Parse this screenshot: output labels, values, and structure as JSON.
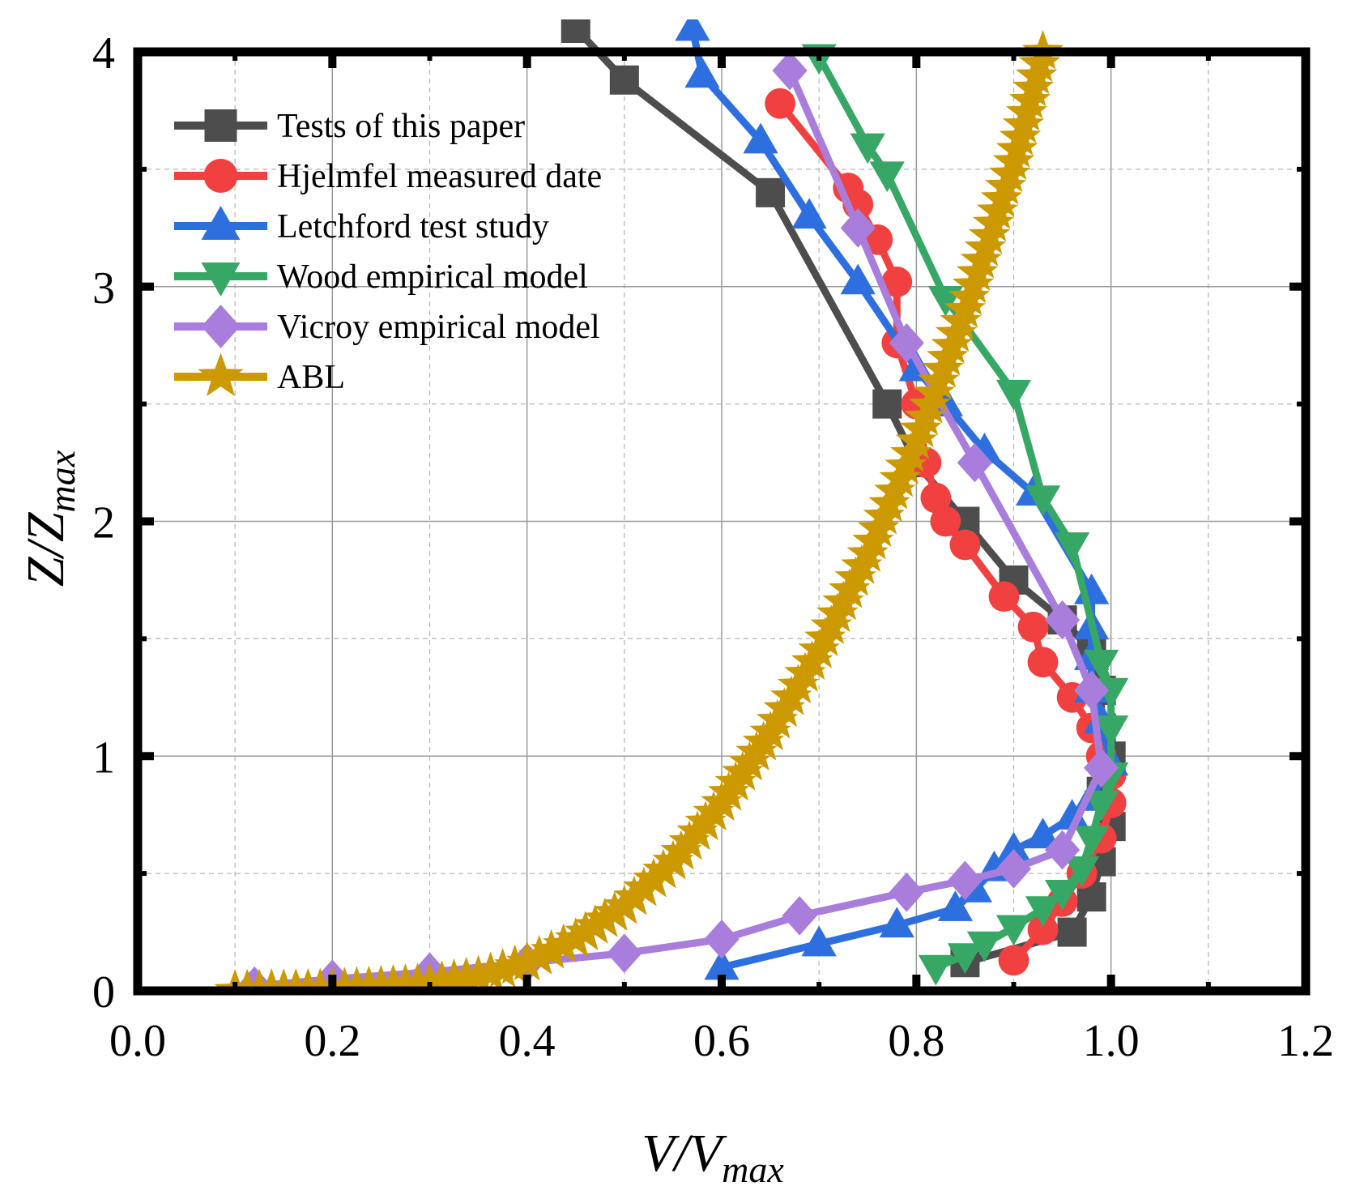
{
  "chart_data": {
    "type": "line",
    "title": "",
    "xlabel_main": "V/V",
    "xlabel_sub": "max",
    "ylabel_main": "Z/Z",
    "ylabel_sub": "max",
    "xlim": [
      0.0,
      1.2
    ],
    "ylim": [
      0,
      4
    ],
    "x_ticks": [
      0.0,
      0.2,
      0.4,
      0.6,
      0.8,
      1.0,
      1.2
    ],
    "x_tick_labels": [
      "0.0",
      "0.2",
      "0.4",
      "0.6",
      "0.8",
      "1.0",
      "1.2"
    ],
    "y_ticks": [
      0,
      1,
      2,
      3,
      4
    ],
    "y_tick_labels": [
      "0",
      "1",
      "2",
      "3",
      "4"
    ],
    "grid": true,
    "legend_position": "top-left",
    "series": [
      {
        "name": "Tests of this paper",
        "color": "#4d4d4d",
        "marker": "square",
        "points": [
          [
            0.85,
            0.12
          ],
          [
            0.96,
            0.25
          ],
          [
            0.98,
            0.4
          ],
          [
            0.99,
            0.55
          ],
          [
            1.0,
            0.7
          ],
          [
            0.99,
            0.85
          ],
          [
            1.0,
            1.0
          ],
          [
            0.99,
            1.12
          ],
          [
            0.99,
            1.28
          ],
          [
            0.98,
            1.45
          ],
          [
            0.95,
            1.58
          ],
          [
            0.9,
            1.75
          ],
          [
            0.85,
            2.0
          ],
          [
            0.8,
            2.25
          ],
          [
            0.77,
            2.5
          ],
          [
            0.65,
            3.4
          ],
          [
            0.5,
            3.88
          ],
          [
            0.45,
            4.1
          ]
        ]
      },
      {
        "name": "Hjelmfel measured date",
        "color": "#f04040",
        "marker": "circle",
        "points": [
          [
            0.9,
            0.13
          ],
          [
            0.93,
            0.26
          ],
          [
            0.95,
            0.38
          ],
          [
            0.97,
            0.5
          ],
          [
            0.99,
            0.65
          ],
          [
            1.0,
            0.8
          ],
          [
            1.0,
            0.92
          ],
          [
            0.99,
            1.0
          ],
          [
            0.98,
            1.12
          ],
          [
            0.96,
            1.25
          ],
          [
            0.93,
            1.4
          ],
          [
            0.92,
            1.55
          ],
          [
            0.89,
            1.68
          ],
          [
            0.85,
            1.9
          ],
          [
            0.83,
            2.0
          ],
          [
            0.82,
            2.1
          ],
          [
            0.81,
            2.25
          ],
          [
            0.8,
            2.5
          ],
          [
            0.78,
            2.76
          ],
          [
            0.78,
            3.02
          ],
          [
            0.76,
            3.2
          ],
          [
            0.74,
            3.35
          ],
          [
            0.73,
            3.42
          ],
          [
            0.66,
            3.78
          ]
        ]
      },
      {
        "name": "Letchford test study",
        "color": "#2e6fe0",
        "marker": "triangle-up",
        "points": [
          [
            0.6,
            0.1
          ],
          [
            0.7,
            0.2
          ],
          [
            0.78,
            0.28
          ],
          [
            0.84,
            0.35
          ],
          [
            0.86,
            0.43
          ],
          [
            0.88,
            0.52
          ],
          [
            0.9,
            0.6
          ],
          [
            0.93,
            0.66
          ],
          [
            0.96,
            0.74
          ],
          [
            0.98,
            0.82
          ],
          [
            1.0,
            0.97
          ],
          [
            0.99,
            1.15
          ],
          [
            0.98,
            1.28
          ],
          [
            0.98,
            1.42
          ],
          [
            0.98,
            1.55
          ],
          [
            0.98,
            1.7
          ],
          [
            0.92,
            2.12
          ],
          [
            0.87,
            2.3
          ],
          [
            0.83,
            2.5
          ],
          [
            0.8,
            2.65
          ],
          [
            0.74,
            3.02
          ],
          [
            0.69,
            3.3
          ],
          [
            0.64,
            3.62
          ],
          [
            0.58,
            3.9
          ],
          [
            0.57,
            4.1
          ]
        ]
      },
      {
        "name": "Wood empirical model",
        "color": "#37a765",
        "marker": "triangle-down",
        "points": [
          [
            0.82,
            0.1
          ],
          [
            0.85,
            0.15
          ],
          [
            0.87,
            0.2
          ],
          [
            0.9,
            0.27
          ],
          [
            0.93,
            0.35
          ],
          [
            0.95,
            0.42
          ],
          [
            0.97,
            0.52
          ],
          [
            0.98,
            0.65
          ],
          [
            0.99,
            0.8
          ],
          [
            1.0,
            0.92
          ],
          [
            1.0,
            1.12
          ],
          [
            1.0,
            1.28
          ],
          [
            0.99,
            1.4
          ],
          [
            0.96,
            1.9
          ],
          [
            0.93,
            2.1
          ],
          [
            0.9,
            2.55
          ],
          [
            0.83,
            2.95
          ],
          [
            0.77,
            3.48
          ],
          [
            0.75,
            3.6
          ],
          [
            0.7,
            3.98
          ]
        ]
      },
      {
        "name": "Vicroy empirical model",
        "color": "#a87ddc",
        "marker": "diamond",
        "points": [
          [
            0.12,
            0.02
          ],
          [
            0.2,
            0.05
          ],
          [
            0.3,
            0.08
          ],
          [
            0.4,
            0.12
          ],
          [
            0.5,
            0.16
          ],
          [
            0.6,
            0.22
          ],
          [
            0.68,
            0.32
          ],
          [
            0.79,
            0.42
          ],
          [
            0.85,
            0.47
          ],
          [
            0.9,
            0.52
          ],
          [
            0.95,
            0.6
          ],
          [
            0.99,
            0.95
          ],
          [
            0.98,
            1.28
          ],
          [
            0.95,
            1.58
          ],
          [
            0.86,
            2.25
          ],
          [
            0.79,
            2.76
          ],
          [
            0.74,
            3.25
          ],
          [
            0.67,
            3.92
          ]
        ]
      },
      {
        "name": "ABL",
        "color": "#cc9900",
        "marker": "star",
        "points": [
          [
            0.1,
            0.0
          ],
          [
            0.2,
            0.006
          ],
          [
            0.3,
            0.03
          ],
          [
            0.35,
            0.06
          ],
          [
            0.4,
            0.12
          ],
          [
            0.45,
            0.22
          ],
          [
            0.5,
            0.36
          ],
          [
            0.55,
            0.55
          ],
          [
            0.6,
            0.8
          ],
          [
            0.65,
            1.1
          ],
          [
            0.7,
            1.45
          ],
          [
            0.75,
            1.86
          ],
          [
            0.8,
            2.34
          ],
          [
            0.85,
            2.9
          ],
          [
            0.9,
            3.53
          ],
          [
            0.93,
            4.0
          ]
        ]
      }
    ]
  }
}
